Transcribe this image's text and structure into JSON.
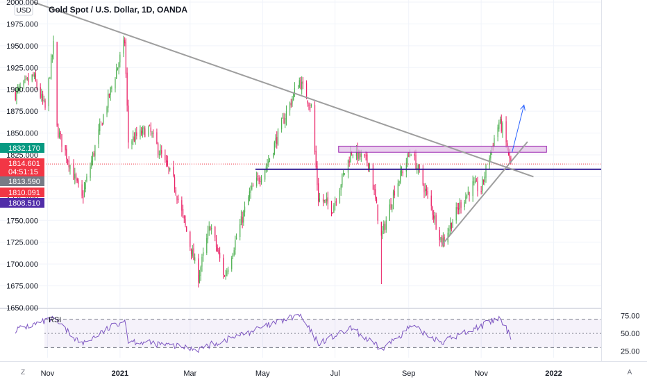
{
  "header": {
    "title": "Gold Spot / U.S. Dollar, 1D, OANDA",
    "currency_button": "USD"
  },
  "price_axis": {
    "ticks": [
      "2000.000",
      "1975.000",
      "1950.000",
      "1925.000",
      "1900.000",
      "1875.000",
      "1850.000",
      "1825.000",
      "1800.000",
      "1775.000",
      "1750.000",
      "1725.000",
      "1700.000",
      "1675.000",
      "1650.000"
    ],
    "tick_values": [
      2000,
      1975,
      1950,
      1925,
      1900,
      1875,
      1850,
      1825,
      1800,
      1775,
      1750,
      1725,
      1700,
      1675,
      1650
    ]
  },
  "price_tags": [
    {
      "label": "1832.170",
      "value": 1832.17,
      "color": "#089981"
    },
    {
      "label": "1814.601",
      "value": 1814.601,
      "color": "#f23645",
      "countdown": "04:51:15"
    },
    {
      "label": "1813.590",
      "value": 1813.59,
      "color": "#787b86"
    },
    {
      "label": "1810.091",
      "value": 1810.091,
      "color": "#f23645"
    },
    {
      "label": "1808.510",
      "value": 1808.51,
      "color": "#512da8"
    }
  ],
  "time_axis": {
    "labels": [
      "Nov",
      "2021",
      "Mar",
      "May",
      "Jul",
      "Sep",
      "Nov",
      "2022"
    ]
  },
  "rsi": {
    "label": "RSI",
    "ticks": [
      "75.00",
      "50.00",
      "25.00"
    ],
    "tick_values": [
      75,
      50,
      25
    ],
    "color": "#7e57c2"
  },
  "footer": {
    "timezone_button": "Z",
    "auto_button": "A"
  },
  "colors": {
    "up": "#4caf50",
    "down": "#e91e63",
    "trendline": "#9e9e9e",
    "support_line": "#311b92",
    "zone_fill": "#e1bee7",
    "zone_border": "#9c27b0",
    "arrow": "#2962ff"
  },
  "chart_data": {
    "type": "candlestick",
    "title": "Gold Spot / U.S. Dollar, 1D, OANDA",
    "ylim": [
      1645,
      2005
    ],
    "y_unit": "USD",
    "anchors": [
      {
        "date": "2020-10-05",
        "price": 1895
      },
      {
        "date": "2020-10-20",
        "price": 1915
      },
      {
        "date": "2020-10-30",
        "price": 1878
      },
      {
        "date": "2020-11-06",
        "price": 1950
      },
      {
        "date": "2020-11-09",
        "price": 1855
      },
      {
        "date": "2020-11-30",
        "price": 1775
      },
      {
        "date": "2020-12-15",
        "price": 1855
      },
      {
        "date": "2021-01-05",
        "price": 1955
      },
      {
        "date": "2021-01-08",
        "price": 1840
      },
      {
        "date": "2021-01-25",
        "price": 1855
      },
      {
        "date": "2021-02-15",
        "price": 1795
      },
      {
        "date": "2021-03-08",
        "price": 1685
      },
      {
        "date": "2021-03-18",
        "price": 1745
      },
      {
        "date": "2021-03-30",
        "price": 1685
      },
      {
        "date": "2021-04-20",
        "price": 1780
      },
      {
        "date": "2021-05-05",
        "price": 1815
      },
      {
        "date": "2021-05-20",
        "price": 1870
      },
      {
        "date": "2021-06-01",
        "price": 1910
      },
      {
        "date": "2021-06-11",
        "price": 1880
      },
      {
        "date": "2021-06-17",
        "price": 1775
      },
      {
        "date": "2021-06-29",
        "price": 1765
      },
      {
        "date": "2021-07-15",
        "price": 1830
      },
      {
        "date": "2021-07-30",
        "price": 1815
      },
      {
        "date": "2021-08-09",
        "price": 1730
      },
      {
        "date": "2021-08-20",
        "price": 1785
      },
      {
        "date": "2021-09-03",
        "price": 1830
      },
      {
        "date": "2021-09-20",
        "price": 1765
      },
      {
        "date": "2021-09-29",
        "price": 1725
      },
      {
        "date": "2021-10-15",
        "price": 1770
      },
      {
        "date": "2021-10-25",
        "price": 1790
      },
      {
        "date": "2021-11-01",
        "price": 1785
      },
      {
        "date": "2021-11-08",
        "price": 1825
      },
      {
        "date": "2021-11-16",
        "price": 1862
      },
      {
        "date": "2021-11-19",
        "price": 1855
      },
      {
        "date": "2021-11-26",
        "price": 1814.6
      }
    ],
    "rsi_anchors": [
      {
        "date": "2020-10-05",
        "value": 55
      },
      {
        "date": "2020-11-06",
        "value": 70
      },
      {
        "date": "2020-11-30",
        "value": 35
      },
      {
        "date": "2021-01-05",
        "value": 70
      },
      {
        "date": "2021-01-08",
        "value": 40
      },
      {
        "date": "2021-03-08",
        "value": 28
      },
      {
        "date": "2021-04-20",
        "value": 52
      },
      {
        "date": "2021-06-01",
        "value": 76
      },
      {
        "date": "2021-06-17",
        "value": 36
      },
      {
        "date": "2021-07-15",
        "value": 57
      },
      {
        "date": "2021-08-09",
        "value": 27
      },
      {
        "date": "2021-09-03",
        "value": 60
      },
      {
        "date": "2021-09-29",
        "value": 38
      },
      {
        "date": "2021-11-16",
        "value": 71
      },
      {
        "date": "2021-11-26",
        "value": 46
      }
    ],
    "rsi_levels": [
      70,
      50,
      30
    ],
    "drawings": {
      "descending_trendline": [
        {
          "date": "2020-10-20",
          "price": 2000
        },
        {
          "date": "2021-12-15",
          "price": 1800
        }
      ],
      "ascending_trendline": [
        {
          "date": "2021-09-29",
          "price": 1722
        },
        {
          "date": "2021-12-10",
          "price": 1840
        }
      ],
      "support_line": {
        "from": "2021-04-25",
        "price": 1808.5
      },
      "resistance_zone": {
        "from": "2021-07-04",
        "to": "2021-12-26",
        "low": 1828,
        "high": 1835
      },
      "projection_arrow": [
        {
          "date": "2021-11-27",
          "price": 1828
        },
        {
          "date": "2021-12-07",
          "price": 1882
        }
      ]
    }
  }
}
